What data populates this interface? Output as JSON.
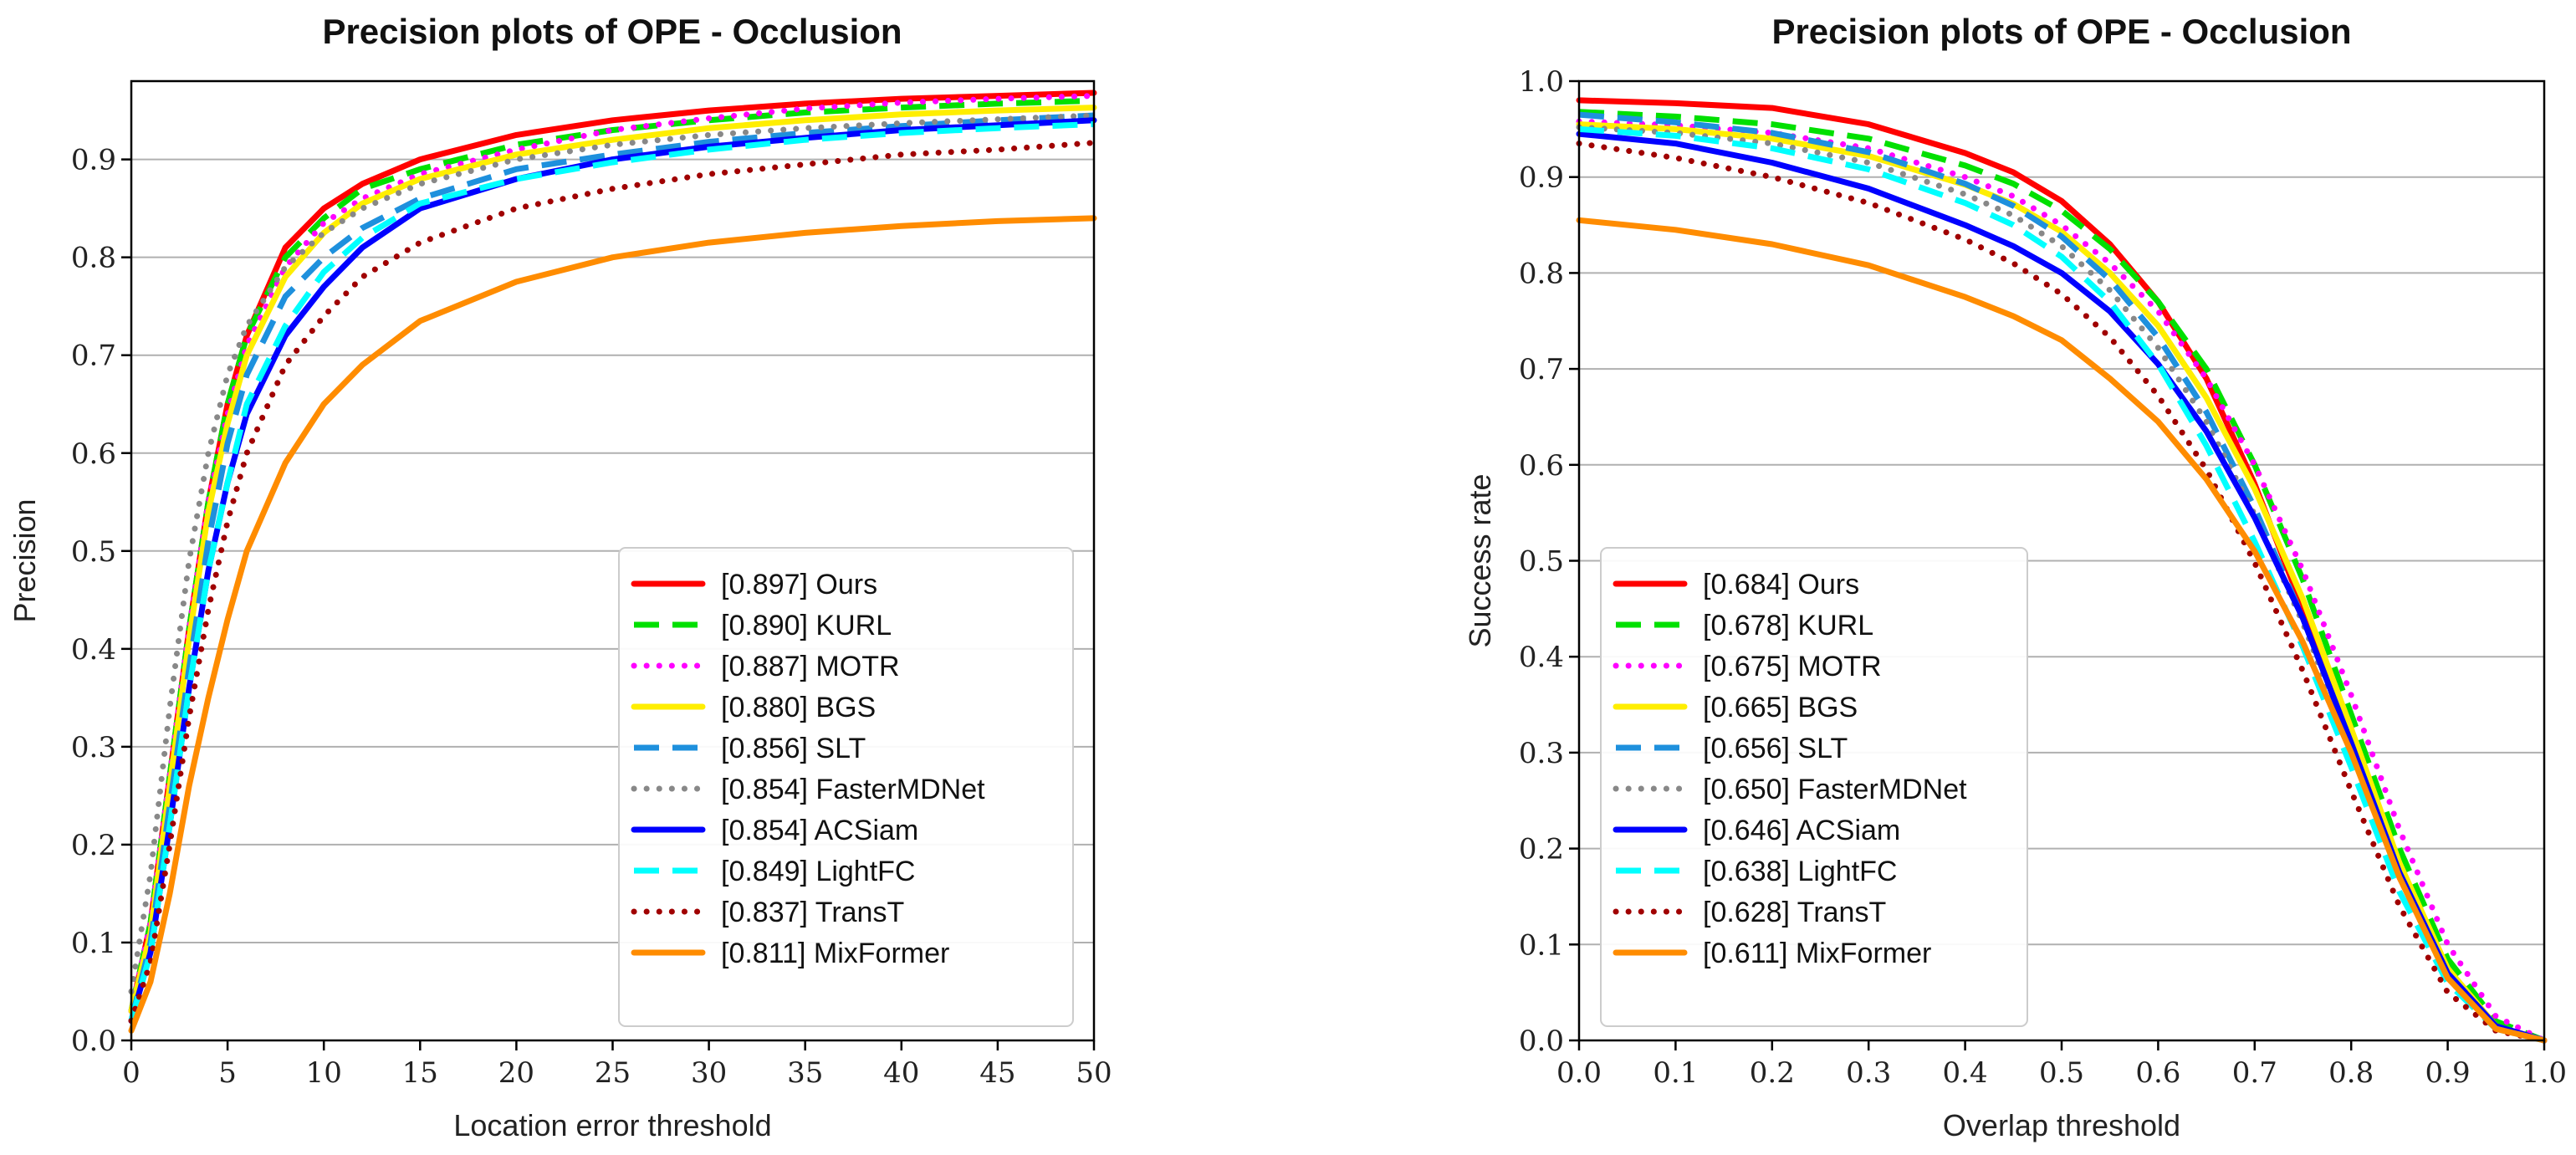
{
  "chart_data": [
    {
      "type": "line",
      "title": "Precision plots of OPE - Occlusion",
      "xlabel": "Location error threshold",
      "ylabel": "Precision",
      "xlim": [
        0,
        50
      ],
      "ylim": [
        0,
        0.98
      ],
      "xticks": [
        "0",
        "5",
        "10",
        "15",
        "20",
        "25",
        "30",
        "35",
        "40",
        "45",
        "50"
      ],
      "yticks": [
        "0.0",
        "0.1",
        "0.2",
        "0.3",
        "0.4",
        "0.5",
        "0.6",
        "0.7",
        "0.8",
        "0.9"
      ],
      "xtick_values": [
        0,
        5,
        10,
        15,
        20,
        25,
        30,
        35,
        40,
        45,
        50
      ],
      "ytick_values": [
        0,
        0.1,
        0.2,
        0.3,
        0.4,
        0.5,
        0.6,
        0.7,
        0.8,
        0.9
      ],
      "grid": "horizontal",
      "legend_position": "bottom-right",
      "x": [
        0,
        1,
        2,
        3,
        4,
        5,
        6,
        8,
        10,
        12,
        15,
        20,
        25,
        30,
        35,
        40,
        45,
        50
      ],
      "series": [
        {
          "name": "[0.897] Ours",
          "color": "#ff0000",
          "dash": "solid",
          "values": [
            0.03,
            0.12,
            0.27,
            0.42,
            0.55,
            0.65,
            0.72,
            0.81,
            0.85,
            0.875,
            0.9,
            0.925,
            0.94,
            0.95,
            0.957,
            0.962,
            0.965,
            0.968
          ]
        },
        {
          "name": "[0.890] KURL",
          "color": "#00e000",
          "dash": "dashed",
          "values": [
            0.03,
            0.12,
            0.27,
            0.42,
            0.55,
            0.65,
            0.72,
            0.8,
            0.84,
            0.87,
            0.89,
            0.915,
            0.93,
            0.94,
            0.948,
            0.953,
            0.957,
            0.96
          ]
        },
        {
          "name": "[0.887] MOTR",
          "color": "#ff00ff",
          "dash": "dotted",
          "values": [
            0.03,
            0.12,
            0.27,
            0.42,
            0.55,
            0.64,
            0.71,
            0.79,
            0.835,
            0.86,
            0.885,
            0.91,
            0.93,
            0.942,
            0.952,
            0.958,
            0.962,
            0.965
          ]
        },
        {
          "name": "[0.880] BGS",
          "color": "#ffee00",
          "dash": "solid",
          "values": [
            0.03,
            0.11,
            0.26,
            0.41,
            0.54,
            0.63,
            0.7,
            0.78,
            0.825,
            0.855,
            0.88,
            0.905,
            0.92,
            0.932,
            0.94,
            0.946,
            0.95,
            0.953
          ]
        },
        {
          "name": "[0.856] SLT",
          "color": "#1e90dd",
          "dash": "dashed",
          "values": [
            0.02,
            0.1,
            0.24,
            0.38,
            0.51,
            0.61,
            0.68,
            0.76,
            0.8,
            0.83,
            0.86,
            0.89,
            0.905,
            0.918,
            0.927,
            0.934,
            0.94,
            0.945
          ]
        },
        {
          "name": "[0.854] FasterMDNet",
          "color": "#888888",
          "dash": "dotted",
          "values": [
            0.05,
            0.17,
            0.34,
            0.49,
            0.6,
            0.68,
            0.73,
            0.79,
            0.825,
            0.85,
            0.875,
            0.9,
            0.915,
            0.925,
            0.932,
            0.937,
            0.941,
            0.945
          ]
        },
        {
          "name": "[0.854] ACSiam",
          "color": "#0000ff",
          "dash": "solid",
          "values": [
            0.02,
            0.09,
            0.22,
            0.36,
            0.48,
            0.57,
            0.64,
            0.72,
            0.77,
            0.81,
            0.85,
            0.88,
            0.9,
            0.913,
            0.922,
            0.93,
            0.935,
            0.94
          ]
        },
        {
          "name": "[0.849] LightFC",
          "color": "#00ffff",
          "dash": "dashed",
          "values": [
            0.02,
            0.09,
            0.22,
            0.36,
            0.48,
            0.57,
            0.65,
            0.73,
            0.785,
            0.82,
            0.855,
            0.88,
            0.897,
            0.91,
            0.92,
            0.927,
            0.932,
            0.936
          ]
        },
        {
          "name": "[0.837] TransT",
          "color": "#a00000",
          "dash": "dotted",
          "values": [
            0.02,
            0.08,
            0.2,
            0.33,
            0.44,
            0.53,
            0.6,
            0.69,
            0.74,
            0.78,
            0.815,
            0.85,
            0.87,
            0.885,
            0.895,
            0.905,
            0.91,
            0.917
          ]
        },
        {
          "name": "[0.811] MixFormer",
          "color": "#ff8c00",
          "dash": "solid",
          "values": [
            0.01,
            0.06,
            0.15,
            0.26,
            0.35,
            0.43,
            0.5,
            0.59,
            0.65,
            0.69,
            0.735,
            0.775,
            0.8,
            0.815,
            0.825,
            0.832,
            0.837,
            0.84
          ]
        }
      ]
    },
    {
      "type": "line",
      "title": "Precision plots of OPE - Occlusion",
      "xlabel": "Overlap threshold",
      "ylabel": "Success rate",
      "xlim": [
        0,
        1
      ],
      "ylim": [
        0,
        1.0
      ],
      "xticks": [
        "0.0",
        "0.1",
        "0.2",
        "0.3",
        "0.4",
        "0.5",
        "0.6",
        "0.7",
        "0.8",
        "0.9",
        "1.0"
      ],
      "yticks": [
        "0.0",
        "0.1",
        "0.2",
        "0.3",
        "0.4",
        "0.5",
        "0.6",
        "0.7",
        "0.8",
        "0.9",
        "1.0"
      ],
      "xtick_values": [
        0,
        0.1,
        0.2,
        0.3,
        0.4,
        0.5,
        0.6,
        0.7,
        0.8,
        0.9,
        1.0
      ],
      "ytick_values": [
        0,
        0.1,
        0.2,
        0.3,
        0.4,
        0.5,
        0.6,
        0.7,
        0.8,
        0.9,
        1.0
      ],
      "grid": "horizontal",
      "legend_position": "bottom-left",
      "x": [
        0,
        0.1,
        0.2,
        0.3,
        0.4,
        0.45,
        0.5,
        0.55,
        0.6,
        0.65,
        0.7,
        0.75,
        0.8,
        0.85,
        0.9,
        0.95,
        1.0
      ],
      "series": [
        {
          "name": "[0.684] Ours",
          "color": "#ff0000",
          "dash": "solid",
          "values": [
            0.98,
            0.977,
            0.972,
            0.955,
            0.925,
            0.905,
            0.875,
            0.83,
            0.77,
            0.69,
            0.58,
            0.45,
            0.31,
            0.17,
            0.07,
            0.015,
            0.0
          ]
        },
        {
          "name": "[0.678] KURL",
          "color": "#00e000",
          "dash": "dashed",
          "values": [
            0.968,
            0.963,
            0.955,
            0.94,
            0.912,
            0.893,
            0.865,
            0.825,
            0.77,
            0.7,
            0.6,
            0.48,
            0.34,
            0.2,
            0.085,
            0.02,
            0.0
          ]
        },
        {
          "name": "[0.675] MOTR",
          "color": "#ff00ff",
          "dash": "dotted",
          "values": [
            0.958,
            0.954,
            0.946,
            0.93,
            0.9,
            0.88,
            0.85,
            0.81,
            0.76,
            0.69,
            0.6,
            0.49,
            0.36,
            0.22,
            0.1,
            0.025,
            0.0
          ]
        },
        {
          "name": "[0.665] BGS",
          "color": "#ffee00",
          "dash": "solid",
          "values": [
            0.955,
            0.95,
            0.94,
            0.922,
            0.892,
            0.872,
            0.843,
            0.8,
            0.745,
            0.67,
            0.575,
            0.46,
            0.325,
            0.185,
            0.075,
            0.015,
            0.0
          ]
        },
        {
          "name": "[0.656] SLT",
          "color": "#1e90dd",
          "dash": "dashed",
          "values": [
            0.965,
            0.957,
            0.946,
            0.926,
            0.893,
            0.87,
            0.838,
            0.793,
            0.733,
            0.655,
            0.555,
            0.44,
            0.31,
            0.175,
            0.07,
            0.015,
            0.0
          ]
        },
        {
          "name": "[0.650] FasterMDNet",
          "color": "#888888",
          "dash": "dotted",
          "values": [
            0.952,
            0.946,
            0.935,
            0.915,
            0.882,
            0.86,
            0.828,
            0.782,
            0.722,
            0.645,
            0.548,
            0.435,
            0.305,
            0.17,
            0.065,
            0.012,
            0.0
          ]
        },
        {
          "name": "[0.646] ACSiam",
          "color": "#0000ff",
          "dash": "solid",
          "values": [
            0.945,
            0.935,
            0.915,
            0.888,
            0.85,
            0.828,
            0.8,
            0.76,
            0.705,
            0.635,
            0.545,
            0.44,
            0.31,
            0.175,
            0.07,
            0.015,
            0.0
          ]
        },
        {
          "name": "[0.638] LightFC",
          "color": "#00ffff",
          "dash": "dashed",
          "values": [
            0.95,
            0.943,
            0.93,
            0.908,
            0.873,
            0.85,
            0.817,
            0.77,
            0.705,
            0.62,
            0.52,
            0.41,
            0.285,
            0.155,
            0.06,
            0.012,
            0.0
          ]
        },
        {
          "name": "[0.628] TransT",
          "color": "#a00000",
          "dash": "dotted",
          "values": [
            0.935,
            0.92,
            0.9,
            0.873,
            0.835,
            0.81,
            0.778,
            0.733,
            0.672,
            0.595,
            0.498,
            0.385,
            0.26,
            0.14,
            0.05,
            0.01,
            0.0
          ]
        },
        {
          "name": "[0.611] MixFormer",
          "color": "#ff8c00",
          "dash": "solid",
          "values": [
            0.855,
            0.845,
            0.83,
            0.808,
            0.775,
            0.755,
            0.73,
            0.69,
            0.645,
            0.585,
            0.51,
            0.415,
            0.3,
            0.17,
            0.065,
            0.012,
            0.0
          ]
        }
      ]
    }
  ]
}
